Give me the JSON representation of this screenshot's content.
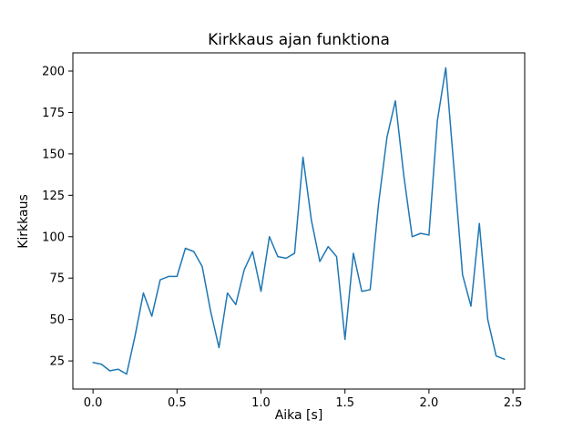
{
  "chart_data": {
    "type": "line",
    "title": "Kirkkaus ajan funktiona",
    "xlabel": "Aika [s]",
    "ylabel": "Kirkkaus",
    "line_color": "#1f77b4",
    "axis_color": "#000000",
    "background_color": "#ffffff",
    "grid": false,
    "legend": null,
    "xlim": [
      -0.12,
      2.57
    ],
    "ylim": [
      8,
      211
    ],
    "xticks": [
      0.0,
      0.5,
      1.0,
      1.5,
      2.0,
      2.5
    ],
    "xtick_labels": [
      "0.0",
      "0.5",
      "1.0",
      "1.5",
      "2.0",
      "2.5"
    ],
    "yticks": [
      25,
      50,
      75,
      100,
      125,
      150,
      175,
      200
    ],
    "ytick_labels": [
      "25",
      "50",
      "75",
      "100",
      "125",
      "150",
      "175",
      "200"
    ],
    "x": [
      0.0,
      0.05,
      0.1,
      0.15,
      0.2,
      0.25,
      0.3,
      0.35,
      0.4,
      0.45,
      0.5,
      0.55,
      0.6,
      0.65,
      0.7,
      0.75,
      0.8,
      0.85,
      0.9,
      0.95,
      1.0,
      1.05,
      1.1,
      1.15,
      1.2,
      1.25,
      1.3,
      1.35,
      1.4,
      1.45,
      1.5,
      1.55,
      1.6,
      1.65,
      1.7,
      1.75,
      1.8,
      1.85,
      1.9,
      1.95,
      2.0,
      2.05,
      2.1,
      2.15,
      2.2,
      2.25,
      2.3,
      2.35,
      2.4,
      2.45
    ],
    "y": [
      24,
      23,
      19,
      20,
      17,
      40,
      66,
      52,
      74,
      76,
      76,
      93,
      91,
      82,
      55,
      33,
      66,
      59,
      80,
      91,
      67,
      100,
      88,
      87,
      90,
      148,
      110,
      85,
      94,
      88,
      38,
      90,
      67,
      68,
      120,
      160,
      182,
      137,
      100,
      102,
      101,
      170,
      202,
      140,
      77,
      58,
      108,
      50,
      28,
      26
    ]
  }
}
